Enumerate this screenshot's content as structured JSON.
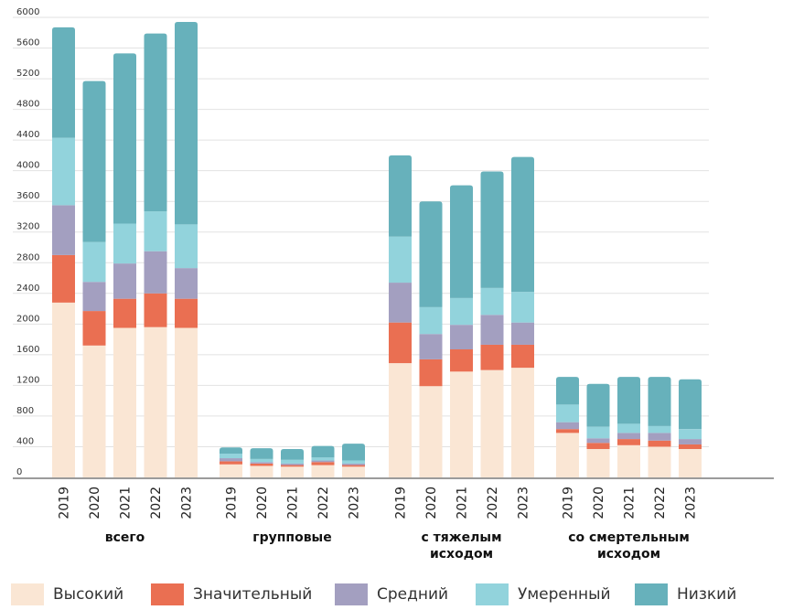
{
  "chart_data": {
    "type": "bar",
    "stacked": true,
    "groups": [
      {
        "name": "всего",
        "line1": "всего",
        "line2": ""
      },
      {
        "name": "групповые",
        "line1": "групповые",
        "line2": ""
      },
      {
        "name": "с тяжелым исходом",
        "line1": "с тяжелым",
        "line2": "исходом"
      },
      {
        "name": "со смертельным исходом",
        "line1": "со смертельным",
        "line2": "исходом"
      }
    ],
    "categories": [
      "2019",
      "2020",
      "2021",
      "2022",
      "2023"
    ],
    "series": [
      {
        "name": "Высокий",
        "color": "#fae6d4",
        "values": [
          [
            2280,
            1720,
            1950,
            1960,
            1950
          ],
          [
            170,
            150,
            140,
            160,
            140
          ],
          [
            1490,
            1190,
            1380,
            1400,
            1430
          ],
          [
            580,
            370,
            420,
            400,
            370
          ]
        ]
      },
      {
        "name": "Значительный",
        "color": "#ea6f52",
        "values": [
          [
            620,
            450,
            380,
            440,
            380
          ],
          [
            40,
            30,
            20,
            40,
            20
          ],
          [
            530,
            350,
            290,
            330,
            300
          ],
          [
            50,
            80,
            80,
            80,
            60
          ]
        ]
      },
      {
        "name": "Средний",
        "color": "#a39fc0",
        "values": [
          [
            650,
            380,
            460,
            550,
            400
          ],
          [
            40,
            20,
            20,
            20,
            20
          ],
          [
            520,
            330,
            320,
            390,
            290
          ],
          [
            90,
            60,
            80,
            100,
            70
          ]
        ]
      },
      {
        "name": "Умеренный",
        "color": "#92d3dc",
        "values": [
          [
            880,
            520,
            520,
            520,
            570
          ],
          [
            60,
            40,
            50,
            40,
            40
          ],
          [
            600,
            350,
            350,
            350,
            400
          ],
          [
            230,
            150,
            120,
            90,
            130
          ]
        ]
      },
      {
        "name": "Низкий",
        "color": "#67b1bb",
        "values": [
          [
            1440,
            2100,
            2220,
            2320,
            2640
          ],
          [
            80,
            140,
            140,
            150,
            220
          ],
          [
            1060,
            1380,
            1470,
            1520,
            1760
          ],
          [
            360,
            560,
            610,
            640,
            650
          ]
        ]
      }
    ],
    "y_ticks": [
      "0",
      "400",
      "800",
      "1200",
      "1600",
      "2000",
      "2400",
      "2800",
      "3200",
      "3600",
      "4000",
      "4400",
      "4800",
      "5200",
      "5600",
      "6000"
    ],
    "ylim": [
      0,
      6000
    ],
    "grid": true,
    "legend_position": "bottom"
  }
}
